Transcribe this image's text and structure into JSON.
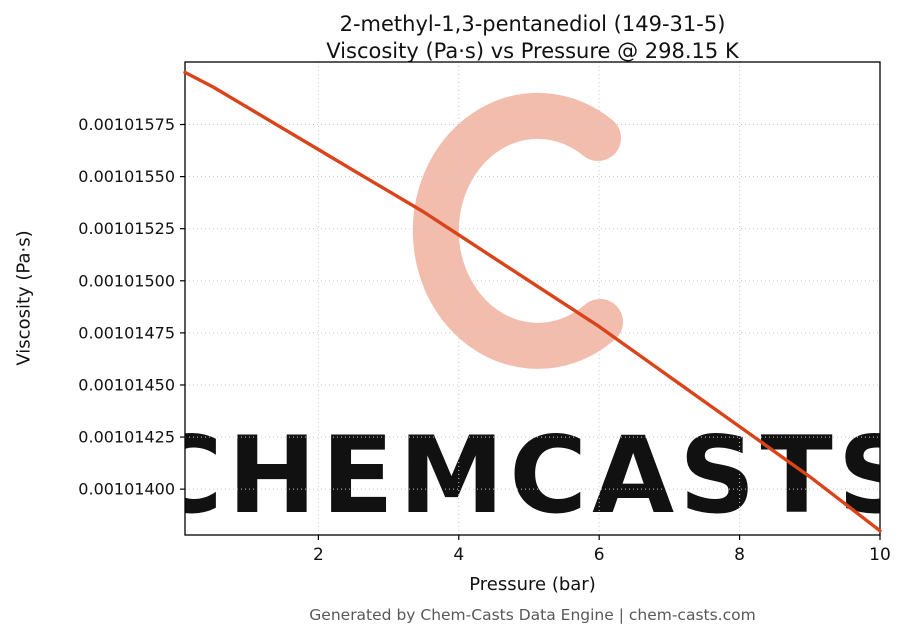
{
  "chart_data": {
    "type": "line",
    "title_line1": "2-methyl-1,3-pentanediol (149-31-5)",
    "title_line2": "Viscosity (Pa·s) vs Pressure @ 298.15 K",
    "xlabel": "Pressure (bar)",
    "ylabel": "Viscosity (Pa·s)",
    "x": [
      0.1,
      0.5,
      1,
      1.5,
      2,
      2.5,
      3,
      3.5,
      4,
      4.5,
      5,
      5.5,
      6,
      6.5,
      7,
      7.5,
      8,
      8.5,
      9,
      9.5,
      10
    ],
    "y": [
      0.001016,
      0.00101593,
      0.00101583,
      0.00101573,
      0.00101563,
      0.00101553,
      0.00101543,
      0.00101533,
      0.00101522,
      0.00101511,
      0.001015,
      0.00101489,
      0.00101478,
      0.00101466,
      0.00101454,
      0.00101442,
      0.0010143,
      0.00101418,
      0.00101406,
      0.00101393,
      0.0010138
    ],
    "xlim": [
      0.1,
      10
    ],
    "ylim": [
      0.00101378,
      0.00101605
    ],
    "xticks": [
      2,
      4,
      6,
      8,
      10
    ],
    "xtick_labels": [
      "2",
      "4",
      "6",
      "8",
      "10"
    ],
    "yticks": [
      0.00101575,
      0.0010155,
      0.00101525,
      0.001015,
      0.00101475,
      0.0010145,
      0.00101425,
      0.001014
    ],
    "ytick_labels": [
      "0.00101575",
      "0.00101550",
      "0.00101525",
      "0.00101500",
      "0.00101475",
      "0.00101450",
      "0.00101425",
      "0.00101400"
    ],
    "grid": true,
    "legend": false,
    "line_color": "#d9441a",
    "grid_color": "#c9c9c9",
    "watermark_text": "CHEMCASTS",
    "watermark_text_color": "#f8d0c6",
    "watermark_logo_color": "#f3bdae"
  },
  "footer": {
    "text": "Generated by Chem-Casts Data Engine | chem-casts.com"
  }
}
